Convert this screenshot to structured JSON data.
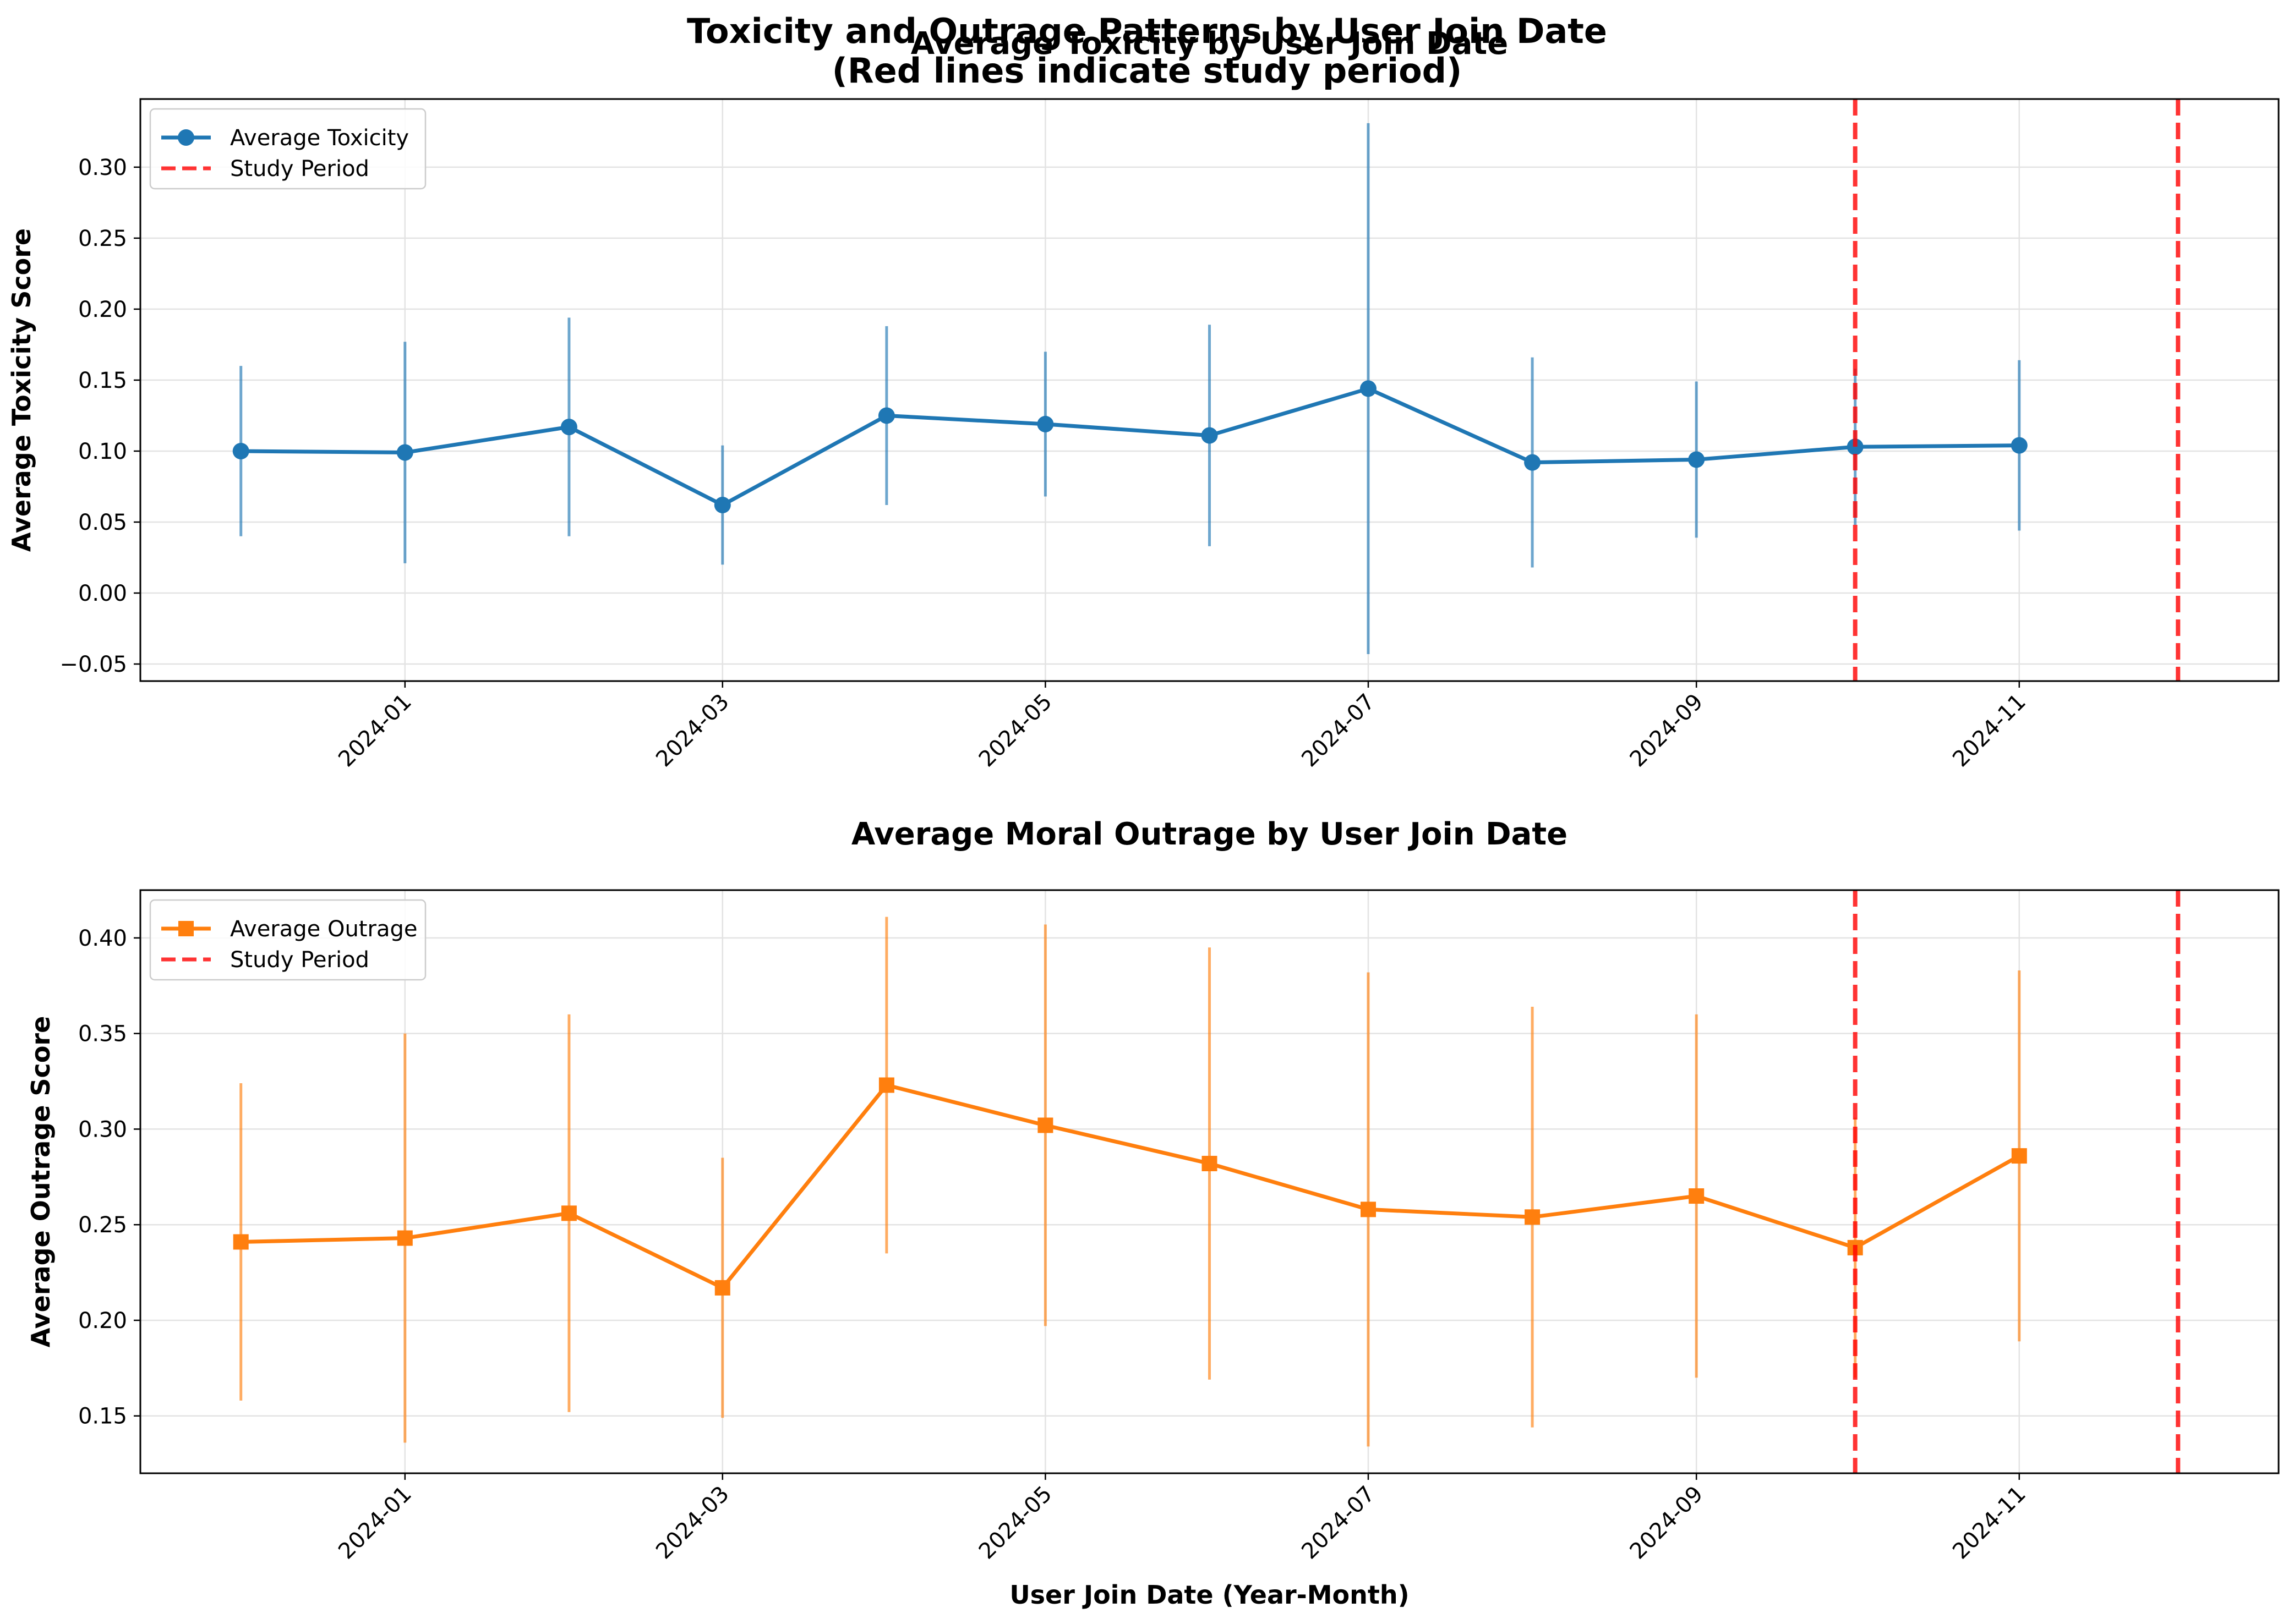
{
  "figure": {
    "suptitle_line1": "Toxicity and Outrage Patterns by User Join Date",
    "suptitle_line2": "(Red lines indicate study period)"
  },
  "chart_data": [
    {
      "type": "line",
      "title": "Average Toxicity by User Join Date",
      "xlabel": "",
      "ylabel": "Average Toxicity Score",
      "x": [
        "2023-12",
        "2024-01",
        "2024-02",
        "2024-03",
        "2024-04",
        "2024-05",
        "2024-06",
        "2024-07",
        "2024-08",
        "2024-09",
        "2024-10",
        "2024-11"
      ],
      "series": [
        {
          "name": "Average Toxicity",
          "color": "#1f77b4",
          "marker": "circle",
          "values": [
            0.1,
            0.099,
            0.117,
            0.062,
            0.125,
            0.119,
            0.111,
            0.144,
            0.092,
            0.094,
            0.103,
            0.104
          ],
          "error": [
            0.06,
            0.078,
            0.077,
            0.042,
            0.063,
            0.051,
            0.078,
            0.187,
            0.074,
            0.055,
            0.055,
            0.06
          ]
        }
      ],
      "study_period": {
        "name": "Study Period",
        "color": "#ff0000",
        "start": "2024-10",
        "end": "2024-12"
      },
      "xlim": [
        "2023-11-12",
        "2024-12-20"
      ],
      "ylim": [
        -0.062,
        0.348
      ],
      "yticks": [
        -0.05,
        0.0,
        0.05,
        0.1,
        0.15,
        0.2,
        0.25,
        0.3
      ],
      "ytick_labels": [
        "−0.05",
        "0.00",
        "0.05",
        "0.10",
        "0.15",
        "0.20",
        "0.25",
        "0.30"
      ],
      "xticks": [
        "2024-01",
        "2024-03",
        "2024-05",
        "2024-07",
        "2024-09",
        "2024-11"
      ],
      "grid": true,
      "legend": "upper left"
    },
    {
      "type": "line",
      "title": "Average Moral Outrage by User Join Date",
      "xlabel": "User Join Date (Year-Month)",
      "ylabel": "Average Outrage Score",
      "x": [
        "2023-12",
        "2024-01",
        "2024-02",
        "2024-03",
        "2024-04",
        "2024-05",
        "2024-06",
        "2024-07",
        "2024-08",
        "2024-09",
        "2024-10",
        "2024-11"
      ],
      "series": [
        {
          "name": "Average Outrage",
          "color": "#ff7f0e",
          "marker": "square",
          "values": [
            0.241,
            0.243,
            0.256,
            0.217,
            0.323,
            0.302,
            0.282,
            0.258,
            0.254,
            0.265,
            0.238,
            0.286
          ],
          "error": [
            0.083,
            0.107,
            0.104,
            0.068,
            0.088,
            0.105,
            0.113,
            0.124,
            0.11,
            0.095,
            0.068,
            0.097
          ]
        }
      ],
      "study_period": {
        "name": "Study Period",
        "color": "#ff0000",
        "start": "2024-10",
        "end": "2024-12"
      },
      "xlim": [
        "2023-11-12",
        "2024-12-20"
      ],
      "ylim": [
        0.12,
        0.425
      ],
      "yticks": [
        0.15,
        0.2,
        0.25,
        0.3,
        0.35,
        0.4
      ],
      "ytick_labels": [
        "0.15",
        "0.20",
        "0.25",
        "0.30",
        "0.35",
        "0.40"
      ],
      "xticks": [
        "2024-01",
        "2024-03",
        "2024-05",
        "2024-07",
        "2024-09",
        "2024-11"
      ],
      "grid": true,
      "legend": "upper left"
    }
  ]
}
